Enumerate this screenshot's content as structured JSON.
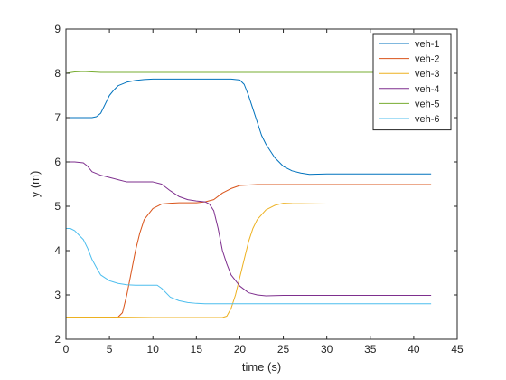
{
  "chart_data": {
    "type": "line",
    "xlabel": "time (s)",
    "ylabel": "y (m)",
    "xlim": [
      0,
      45
    ],
    "ylim": [
      2,
      9
    ],
    "xticks": [
      0,
      5,
      10,
      15,
      20,
      25,
      30,
      35,
      40,
      45
    ],
    "yticks": [
      2,
      3,
      4,
      5,
      6,
      7,
      8,
      9
    ],
    "grid": false,
    "legend_position": "top-right",
    "series": [
      {
        "name": "veh-1",
        "color": "#0072BD",
        "x": [
          0,
          3,
          3.5,
          4,
          4.5,
          5,
          5.5,
          6,
          7,
          8,
          9,
          10,
          11,
          15,
          19,
          20,
          20.5,
          21,
          21.5,
          22,
          22.5,
          23,
          24,
          25,
          26,
          27,
          28,
          30,
          35,
          42
        ],
        "y": [
          7.0,
          7.0,
          7.02,
          7.1,
          7.3,
          7.5,
          7.62,
          7.72,
          7.8,
          7.84,
          7.86,
          7.87,
          7.87,
          7.87,
          7.87,
          7.85,
          7.75,
          7.5,
          7.2,
          6.9,
          6.6,
          6.4,
          6.1,
          5.9,
          5.8,
          5.75,
          5.72,
          5.73,
          5.73,
          5.73
        ]
      },
      {
        "name": "veh-2",
        "color": "#D95319",
        "x": [
          0,
          5,
          6,
          6.5,
          7,
          7.5,
          8,
          8.5,
          9,
          10,
          11,
          12,
          13,
          15,
          16,
          17,
          18,
          19,
          20,
          21,
          22,
          25,
          30,
          42
        ],
        "y": [
          2.5,
          2.5,
          2.5,
          2.6,
          3.0,
          3.5,
          4.0,
          4.4,
          4.7,
          4.95,
          5.05,
          5.07,
          5.08,
          5.08,
          5.1,
          5.15,
          5.3,
          5.4,
          5.47,
          5.48,
          5.49,
          5.49,
          5.49,
          5.49
        ]
      },
      {
        "name": "veh-3",
        "color": "#EDB120",
        "x": [
          0,
          5,
          10,
          15,
          18,
          18.5,
          19,
          19.5,
          20,
          20.5,
          21,
          21.5,
          22,
          23,
          24,
          25,
          26,
          30,
          42
        ],
        "y": [
          2.5,
          2.5,
          2.49,
          2.49,
          2.49,
          2.52,
          2.7,
          3.0,
          3.4,
          3.8,
          4.2,
          4.5,
          4.7,
          4.92,
          5.02,
          5.07,
          5.06,
          5.05,
          5.05
        ]
      },
      {
        "name": "veh-4",
        "color": "#7E2F8E",
        "x": [
          0,
          1,
          2,
          2.5,
          3,
          4,
          5,
          6,
          7,
          8,
          10,
          11,
          12,
          13,
          14,
          15,
          16,
          16.5,
          17,
          17.5,
          18,
          18.5,
          19,
          20,
          21,
          22,
          23,
          25,
          30,
          42
        ],
        "y": [
          6.0,
          6.0,
          5.98,
          5.9,
          5.78,
          5.7,
          5.65,
          5.6,
          5.55,
          5.55,
          5.55,
          5.5,
          5.35,
          5.22,
          5.15,
          5.12,
          5.1,
          5.05,
          4.9,
          4.5,
          4.0,
          3.7,
          3.45,
          3.2,
          3.05,
          3.0,
          2.98,
          2.99,
          2.99,
          2.99
        ]
      },
      {
        "name": "veh-5",
        "color": "#77AC30",
        "x": [
          0,
          1,
          2,
          3,
          4,
          5,
          10,
          20,
          30,
          42
        ],
        "y": [
          8.0,
          8.03,
          8.04,
          8.03,
          8.02,
          8.02,
          8.02,
          8.02,
          8.02,
          8.02
        ]
      },
      {
        "name": "veh-6",
        "color": "#4DBEEE",
        "x": [
          0,
          0.5,
          1,
          1.5,
          2,
          2.5,
          3,
          3.5,
          4,
          5,
          6,
          7,
          8,
          9,
          10,
          10.5,
          11,
          12,
          13,
          14,
          15,
          16,
          20,
          30,
          42
        ],
        "y": [
          4.5,
          4.5,
          4.45,
          4.35,
          4.25,
          4.05,
          3.8,
          3.62,
          3.45,
          3.32,
          3.26,
          3.23,
          3.22,
          3.22,
          3.22,
          3.22,
          3.15,
          2.95,
          2.87,
          2.83,
          2.81,
          2.8,
          2.8,
          2.8,
          2.8
        ]
      }
    ]
  }
}
